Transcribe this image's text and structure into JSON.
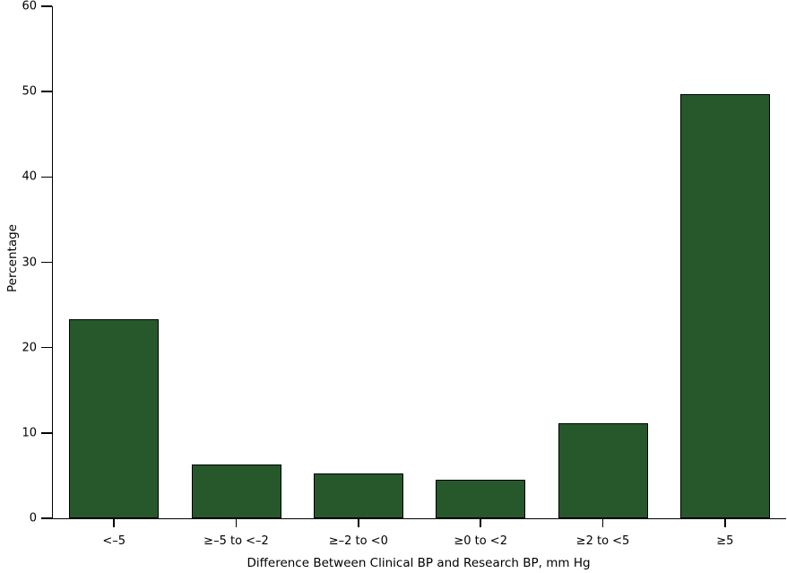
{
  "chart_data": {
    "type": "bar",
    "title": "",
    "xlabel": "Difference Between Clinical BP and Research BP, mm Hg",
    "ylabel": "Percentage",
    "categories": [
      "<–5",
      "≥–5 to <–2",
      "≥–2 to <0",
      "≥0 to <2",
      "≥2 to <5",
      "≥5"
    ],
    "values": [
      23.3,
      6.3,
      5.3,
      4.5,
      11.1,
      49.7
    ],
    "ylim": [
      0,
      60
    ],
    "yticks": [
      0,
      10,
      20,
      30,
      40,
      50,
      60
    ],
    "grid": false,
    "legend_position": "none",
    "bar_fill_color": "#26582B",
    "bar_border_color": "#000000",
    "axis_color": "#000000",
    "background_color": "#FFFFFF"
  }
}
